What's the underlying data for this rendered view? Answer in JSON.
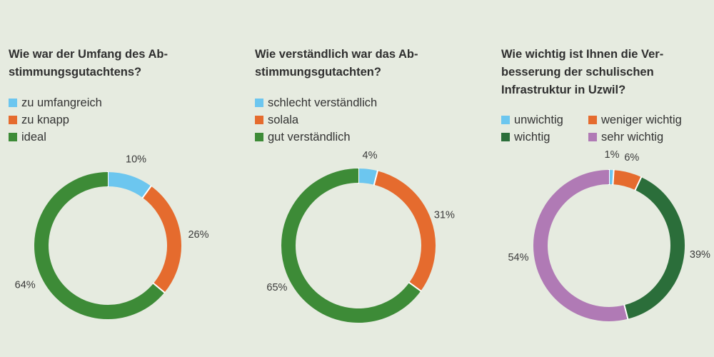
{
  "colors": {
    "blue": "#6cc6ef",
    "orange": "#e56b2e",
    "darkgreen": "#2b6e3a",
    "green": "#3d8b37",
    "purple": "#b07ab5"
  },
  "chart_data": [
    {
      "type": "pie",
      "title_lines": [
        "Wie war der Umfang des Ab-",
        "stimmungsgutachtens?"
      ],
      "legend": [
        "zu umfangreich",
        "zu knapp",
        "ideal"
      ],
      "slices": [
        {
          "label": "zu umfangreich",
          "value": 10,
          "display": "10%",
          "color": "#6cc6ef"
        },
        {
          "label": "zu knapp",
          "value": 26,
          "display": "26%",
          "color": "#e56b2e"
        },
        {
          "label": "ideal",
          "value": 64,
          "display": "64%",
          "color": "#3d8b37"
        }
      ]
    },
    {
      "type": "pie",
      "title_lines": [
        "Wie verständlich war das Ab-",
        "stimmungsgutachten?"
      ],
      "legend": [
        "schlecht verständlich",
        "solala",
        "gut verständlich"
      ],
      "slices": [
        {
          "label": "schlecht verständlich",
          "value": 4,
          "display": "4%",
          "color": "#6cc6ef"
        },
        {
          "label": "solala",
          "value": 31,
          "display": "31%",
          "color": "#e56b2e"
        },
        {
          "label": "gut verständlich",
          "value": 65,
          "display": "65%",
          "color": "#3d8b37"
        }
      ]
    },
    {
      "type": "pie",
      "title_lines": [
        "Wie wichtig ist Ihnen die Ver-",
        "besserung der schulischen",
        "Infrastruktur in Uzwil?"
      ],
      "legend": [
        "unwichtig",
        "weniger wichtig",
        "wichtig",
        "sehr wichtig"
      ],
      "slices": [
        {
          "label": "unwichtig",
          "value": 1,
          "display": "1%",
          "color": "#6cc6ef"
        },
        {
          "label": "weniger wichtig",
          "value": 6,
          "display": "6%",
          "color": "#e56b2e"
        },
        {
          "label": "wichtig",
          "value": 39,
          "display": "39%",
          "color": "#2b6e3a"
        },
        {
          "label": "sehr wichtig",
          "value": 54,
          "display": "54%",
          "color": "#b07ab5"
        }
      ]
    }
  ]
}
